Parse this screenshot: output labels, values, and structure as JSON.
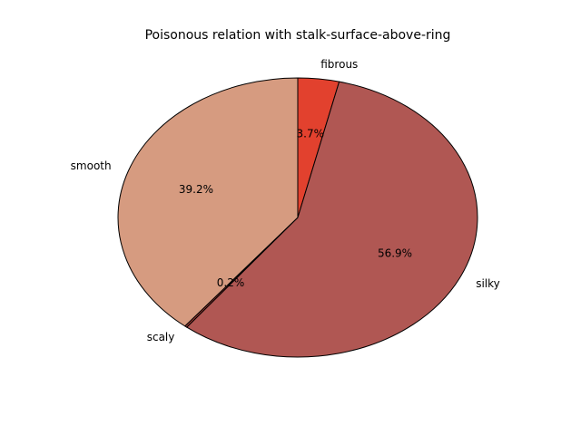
{
  "chart_data": {
    "type": "pie",
    "title": "Poisonous relation with stalk-surface-above-ring",
    "slices": [
      {
        "label": "fibrous",
        "value": 3.7,
        "value_label": "3.7%",
        "color": "#e2412e"
      },
      {
        "label": "silky",
        "value": 56.9,
        "value_label": "56.9%",
        "color": "#b05753"
      },
      {
        "label": "scaly",
        "value": 0.2,
        "value_label": "0.2%",
        "color": "#a03c34"
      },
      {
        "label": "smooth",
        "value": 39.2,
        "value_label": "39.2%",
        "color": "#d69b80"
      }
    ],
    "start_angle_deg": 90,
    "direction": "clockwise",
    "legend": "none"
  }
}
